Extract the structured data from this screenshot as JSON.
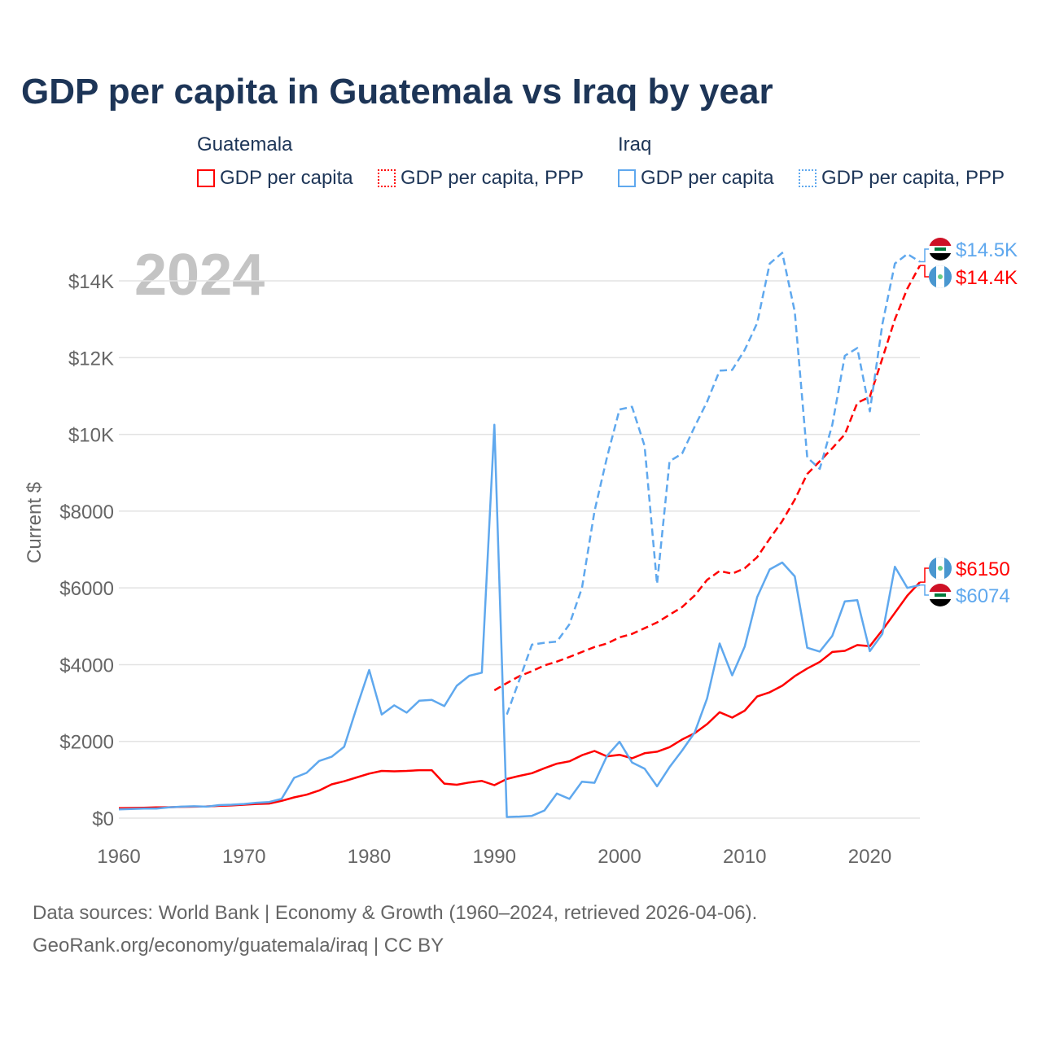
{
  "title": "GDP per capita in Guatemala vs Iraq by year",
  "legend": {
    "groups": [
      {
        "name": "Guatemala",
        "color": "#ff0000",
        "items": [
          "GDP per capita",
          "GDP per capita, PPP"
        ]
      },
      {
        "name": "Iraq",
        "color": "#5fa8ee",
        "items": [
          "GDP per capita",
          "GDP per capita, PPP"
        ]
      }
    ]
  },
  "year_watermark": "2024",
  "footer": {
    "line1": "Data sources: World Bank | Economy & Growth (1960–2024, retrieved 2026-04-06).",
    "line2": "GeoRank.org/economy/guatemala/iraq | CC BY"
  },
  "chart_data": {
    "type": "line",
    "title": "GDP per capita in Guatemala vs Iraq by year",
    "xlabel": "",
    "ylabel": "Current $",
    "xlim": [
      1960,
      2024
    ],
    "ylim": [
      0,
      15000
    ],
    "xticks": [
      "1960",
      "1970",
      "1980",
      "1990",
      "2000",
      "2010",
      "2020"
    ],
    "yticks": [
      "$0",
      "$2000",
      "$4000",
      "$6000",
      "$8000",
      "$10K",
      "$12K",
      "$14K"
    ],
    "grid": true,
    "legend_position": "top",
    "series": [
      {
        "name": "Guatemala GDP per capita",
        "color": "#ff0000",
        "dash": false,
        "start": 1960,
        "end_label": "$6150",
        "values": [
          260,
          265,
          270,
          280,
          285,
          295,
          300,
          305,
          320,
          330,
          350,
          370,
          380,
          450,
          540,
          610,
          720,
          880,
          960,
          1060,
          1160,
          1230,
          1220,
          1230,
          1250,
          1250,
          900,
          870,
          930,
          970,
          860,
          1020,
          1100,
          1170,
          1300,
          1420,
          1480,
          1640,
          1750,
          1610,
          1650,
          1560,
          1690,
          1730,
          1850,
          2050,
          2210,
          2450,
          2760,
          2620,
          2800,
          3170,
          3280,
          3450,
          3700,
          3900,
          4070,
          4330,
          4360,
          4510,
          4480,
          4900,
          5350,
          5800,
          6150
        ]
      },
      {
        "name": "Guatemala GDP per capita, PPP",
        "color": "#ff0000",
        "dash": true,
        "start": 1990,
        "end_label": "$14.4K",
        "values": [
          3330,
          3520,
          3700,
          3830,
          3980,
          4080,
          4200,
          4330,
          4460,
          4550,
          4710,
          4800,
          4950,
          5100,
          5300,
          5500,
          5800,
          6210,
          6440,
          6370,
          6510,
          6800,
          7280,
          7740,
          8300,
          8970,
          9300,
          9640,
          10000,
          10820,
          10980,
          11980,
          13000,
          13800,
          14400
        ]
      },
      {
        "name": "Iraq GDP per capita",
        "color": "#5fa8ee",
        "dash": false,
        "start": 1960,
        "end_label": "$6074",
        "values": [
          230,
          240,
          250,
          250,
          280,
          300,
          310,
          300,
          340,
          350,
          370,
          400,
          420,
          500,
          1050,
          1180,
          1490,
          1600,
          1860,
          2880,
          3860,
          2700,
          2940,
          2750,
          3060,
          3080,
          2920,
          3450,
          3710,
          3790,
          10250,
          30,
          40,
          60,
          200,
          640,
          500,
          950,
          920,
          1620,
          1990,
          1450,
          1290,
          830,
          1330,
          1760,
          2230,
          3120,
          4550,
          3720,
          4470,
          5760,
          6480,
          6660,
          6300,
          4440,
          4340,
          4750,
          5650,
          5680,
          4350,
          4800,
          6550,
          6000,
          6074
        ]
      },
      {
        "name": "Iraq GDP per capita, PPP",
        "color": "#5fa8ee",
        "dash": true,
        "start": 1991,
        "end_label": "$14.5K",
        "values": [
          2700,
          3600,
          4520,
          4570,
          4600,
          5050,
          6000,
          8000,
          9400,
          10650,
          10720,
          9700,
          6100,
          9300,
          9500,
          10200,
          10850,
          11660,
          11680,
          12200,
          12900,
          14450,
          14730,
          13200,
          9400,
          9100,
          10250,
          12050,
          12250,
          10600,
          12870,
          14450,
          14700,
          14500
        ]
      }
    ]
  }
}
